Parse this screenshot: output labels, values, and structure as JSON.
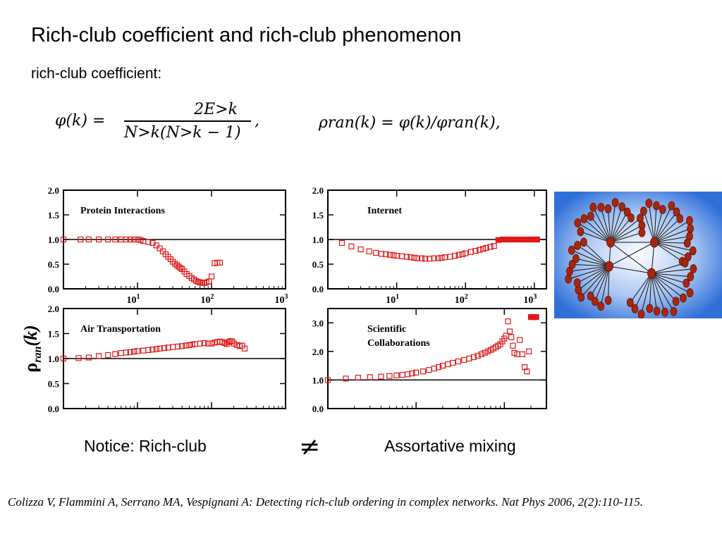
{
  "slide": {
    "title": "Rich-club coefficient and rich-club phenomenon",
    "subtitle": "rich-club coefficient:",
    "formula1": {
      "lhs": "φ(k)  =",
      "numerator": "2E>k",
      "denominator": "N>k(N>k − 1)",
      "trailing": ","
    },
    "formula2": "ρran(k) = φ(k)/φran(k),",
    "notice_left": "Notice:  Rich-club",
    "not_equal_symbol": "≠",
    "notice_right": "Assortative mixing",
    "citation": "Colizza V, Flammini A, Serrano MA, Vespignani A: Detecting rich-club ordering in complex networks. Nat Phys 2006, 2(2):110-115.",
    "y_axis_label": "ρran(k)"
  },
  "chart_data": [
    {
      "type": "scatter",
      "title": "Protein Interactions",
      "xscale": "log",
      "xlim": [
        1,
        1000
      ],
      "ylim": [
        0,
        2
      ],
      "yticks": [
        "0.0",
        "0.5",
        "1.0",
        "1.5",
        "2.0"
      ],
      "xticks": [
        "10^1",
        "10^2",
        "10^3"
      ],
      "reference_line": 1.0,
      "grid": false,
      "series": [
        {
          "x": [
            1,
            1.7,
            2.2,
            3,
            4,
            5,
            6,
            7,
            8,
            9,
            10,
            11,
            12,
            14,
            16,
            18,
            20,
            22,
            24,
            26,
            28,
            30,
            32,
            34,
            36,
            38,
            40,
            43,
            46,
            50,
            54,
            58,
            62,
            66,
            70,
            75,
            80,
            85,
            92,
            100,
            110,
            120,
            130
          ],
          "y": [
            1.0,
            1.0,
            1.0,
            1.0,
            1.0,
            1.0,
            1.0,
            1.0,
            1.0,
            1.0,
            1.0,
            0.99,
            0.97,
            0.95,
            0.93,
            0.88,
            0.82,
            0.76,
            0.7,
            0.65,
            0.6,
            0.55,
            0.51,
            0.48,
            0.45,
            0.42,
            0.4,
            0.35,
            0.3,
            0.26,
            0.22,
            0.19,
            0.16,
            0.14,
            0.13,
            0.12,
            0.12,
            0.13,
            0.15,
            0.25,
            0.52,
            0.53,
            0.53
          ]
        }
      ]
    },
    {
      "type": "scatter",
      "title": "Internet",
      "xscale": "log",
      "xlim": [
        1,
        1500
      ],
      "ylim": [
        0,
        2
      ],
      "yticks": [
        "0.0",
        "0.5",
        "1.0",
        "1.5",
        "2.0"
      ],
      "xticks": [
        "10^1",
        "10^2",
        "10^3"
      ],
      "reference_line": 1.0,
      "grid": false,
      "series": [
        {
          "x": [
            1.6,
            2.2,
            3,
            4,
            5,
            6,
            7,
            8,
            9,
            10,
            12,
            14,
            16,
            18,
            20,
            23,
            26,
            30,
            35,
            40,
            45,
            50,
            60,
            70,
            80,
            90,
            100,
            120,
            140,
            160,
            180,
            200,
            230,
            260,
            300,
            350,
            400,
            450,
            500,
            600,
            700,
            800,
            900,
            1000,
            1100
          ],
          "y": [
            0.93,
            0.86,
            0.8,
            0.76,
            0.73,
            0.71,
            0.7,
            0.69,
            0.68,
            0.67,
            0.66,
            0.65,
            0.64,
            0.63,
            0.62,
            0.62,
            0.61,
            0.61,
            0.62,
            0.62,
            0.63,
            0.64,
            0.65,
            0.67,
            0.69,
            0.7,
            0.72,
            0.75,
            0.77,
            0.79,
            0.81,
            0.83,
            0.85,
            0.87,
            0.99,
            1.0,
            1.0,
            1.0,
            1.0,
            1.0,
            1.0,
            1.0,
            1.0,
            1.0,
            1.0
          ]
        }
      ]
    },
    {
      "type": "scatter",
      "title": "Air Transportation",
      "xscale": "log",
      "xlim": [
        1,
        1000
      ],
      "ylim": [
        0,
        2
      ],
      "yticks": [
        "0.0",
        "0.5",
        "1.0",
        "1.5",
        "2.0"
      ],
      "xticks": [],
      "reference_line": 1.0,
      "grid": false,
      "series": [
        {
          "x": [
            1,
            1.6,
            2.2,
            3,
            4,
            5,
            6,
            7,
            8,
            9,
            10,
            12,
            14,
            16,
            18,
            20,
            23,
            26,
            30,
            35,
            40,
            45,
            50,
            55,
            60,
            70,
            80,
            90,
            100,
            110,
            120,
            130,
            140,
            150,
            160,
            170,
            180,
            190,
            200,
            220,
            240,
            260,
            280
          ],
          "y": [
            1.0,
            1.01,
            1.02,
            1.05,
            1.07,
            1.09,
            1.11,
            1.12,
            1.13,
            1.14,
            1.15,
            1.16,
            1.17,
            1.18,
            1.19,
            1.2,
            1.21,
            1.22,
            1.23,
            1.24,
            1.25,
            1.26,
            1.27,
            1.28,
            1.29,
            1.3,
            1.31,
            1.3,
            1.3,
            1.32,
            1.33,
            1.34,
            1.33,
            1.31,
            1.29,
            1.33,
            1.35,
            1.34,
            1.3,
            1.27,
            1.25,
            1.26,
            1.2
          ]
        }
      ]
    },
    {
      "type": "scatter",
      "title": "Scientific Collaborations",
      "xscale": "log",
      "xlim": [
        1,
        300
      ],
      "ylim": [
        0,
        3.5
      ],
      "yticks": [
        "0.0",
        "1.0",
        "2.0",
        "3.0"
      ],
      "xticks": [],
      "reference_line": 1.0,
      "grid": false,
      "series": [
        {
          "x": [
            1,
            1.6,
            2.2,
            3,
            4,
            5,
            6,
            7,
            8,
            9,
            10,
            12,
            14,
            16,
            18,
            20,
            23,
            26,
            30,
            35,
            40,
            45,
            50,
            55,
            60,
            65,
            70,
            75,
            80,
            85,
            90,
            95,
            100,
            105,
            110,
            115,
            120,
            125,
            130,
            140,
            150,
            160,
            170,
            180,
            190
          ],
          "y": [
            1.0,
            1.05,
            1.08,
            1.1,
            1.12,
            1.14,
            1.16,
            1.18,
            1.2,
            1.23,
            1.26,
            1.3,
            1.35,
            1.4,
            1.45,
            1.5,
            1.55,
            1.6,
            1.65,
            1.7,
            1.75,
            1.8,
            1.85,
            1.9,
            1.95,
            2.0,
            2.05,
            2.1,
            2.15,
            2.2,
            2.25,
            2.35,
            2.45,
            2.55,
            3.05,
            2.7,
            2.5,
            2.2,
            1.95,
            1.9,
            2.4,
            1.9,
            1.45,
            1.3,
            2.0
          ]
        },
        {
          "x": [
            200,
            215,
            230
          ],
          "y": [
            3.2,
            3.2,
            3.2
          ]
        }
      ]
    }
  ]
}
